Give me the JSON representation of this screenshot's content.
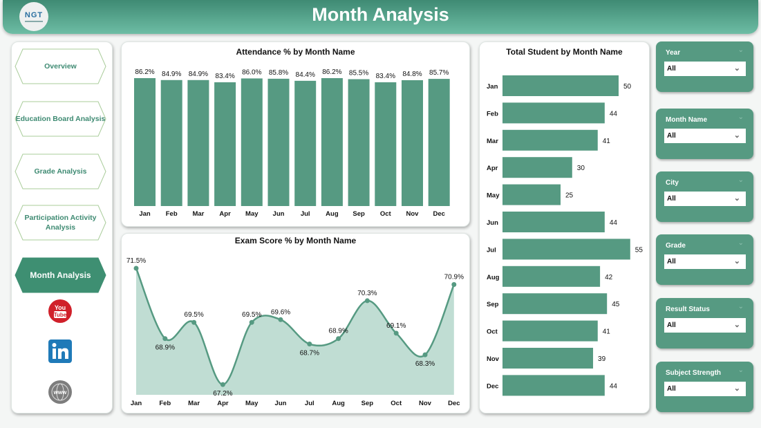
{
  "header": {
    "title": "Month Analysis",
    "logo_text": "NGT"
  },
  "nav": {
    "items": [
      {
        "label": "Overview",
        "active": false
      },
      {
        "label": "Education Board Analysis",
        "active": false
      },
      {
        "label": "Grade Analysis",
        "active": false
      },
      {
        "label": "Participation Activity Analysis",
        "active": false
      },
      {
        "label": "Month Analysis",
        "active": true
      }
    ],
    "social": [
      "youtube-icon",
      "linkedin-icon",
      "website-icon"
    ]
  },
  "colors": {
    "accent": "#569a82",
    "area": "#c0ddd3",
    "header": "#4f9b83"
  },
  "slicers": [
    {
      "label": "Year",
      "value": "All"
    },
    {
      "label": "Month Name",
      "value": "All"
    },
    {
      "label": "City",
      "value": "All"
    },
    {
      "label": "Grade",
      "value": "All"
    },
    {
      "label": "Result Status",
      "value": "All"
    },
    {
      "label": "Subject Strength",
      "value": "All"
    }
  ],
  "chart_data": [
    {
      "type": "bar",
      "title": "Attendance % by Month Name",
      "categories": [
        "Jan",
        "Feb",
        "Mar",
        "Apr",
        "May",
        "Jun",
        "Jul",
        "Aug",
        "Sep",
        "Oct",
        "Nov",
        "Dec"
      ],
      "values": [
        86.2,
        84.9,
        84.9,
        83.4,
        86.0,
        85.8,
        84.4,
        86.2,
        85.5,
        83.4,
        84.8,
        85.7
      ],
      "labels": [
        "86.2%",
        "84.9%",
        "84.9%",
        "83.4%",
        "86.0%",
        "85.8%",
        "84.4%",
        "86.2%",
        "85.5%",
        "83.4%",
        "84.8%",
        "85.7%"
      ],
      "ylim": [
        0,
        100
      ]
    },
    {
      "type": "area",
      "title": "Exam Score % by Month Name",
      "categories": [
        "Jan",
        "Feb",
        "Mar",
        "Apr",
        "May",
        "Jun",
        "Jul",
        "Aug",
        "Sep",
        "Oct",
        "Nov",
        "Dec"
      ],
      "values": [
        71.5,
        68.9,
        69.5,
        67.2,
        69.5,
        69.6,
        68.7,
        68.9,
        70.3,
        69.1,
        68.3,
        70.9
      ],
      "labels": [
        "71.5%",
        "68.9%",
        "69.5%",
        "67.2%",
        "69.5%",
        "69.6%",
        "68.7%",
        "68.9%",
        "70.3%",
        "69.1%",
        "68.3%",
        "70.9%"
      ],
      "ylim": [
        67,
        71.5
      ]
    },
    {
      "type": "bar",
      "orientation": "horizontal",
      "title": "Total Student by Month Name",
      "categories": [
        "Jan",
        "Feb",
        "Mar",
        "Apr",
        "May",
        "Jun",
        "Jul",
        "Aug",
        "Sep",
        "Oct",
        "Nov",
        "Dec"
      ],
      "values": [
        50,
        44,
        41,
        30,
        25,
        44,
        55,
        42,
        45,
        41,
        39,
        44
      ],
      "xlim": [
        0,
        60
      ]
    }
  ]
}
